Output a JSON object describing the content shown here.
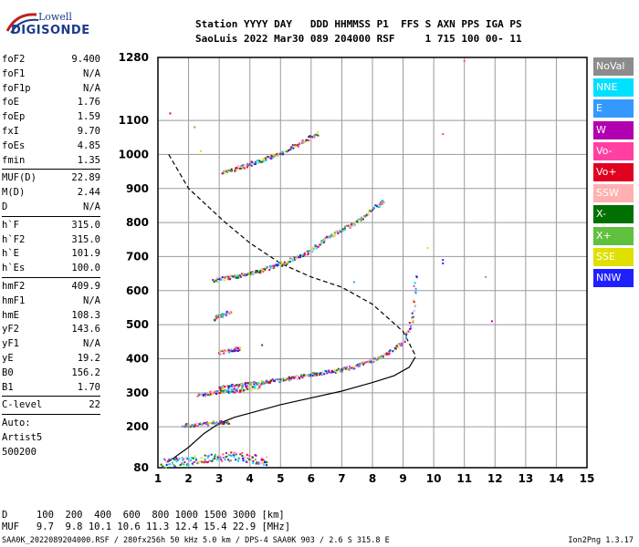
{
  "logo": {
    "top": "Lowell",
    "main": "DIGISONDE"
  },
  "header": {
    "line1": "Station YYYY DAY   DDD HHMMSS P1  FFS S AXN PPS IGA PS",
    "line2": "SaoLuis 2022 Mar30 089 204000 RSF     1 715 100 00- 11"
  },
  "params": {
    "group1": [
      {
        "name": "foF2",
        "value": "9.400"
      },
      {
        "name": "foF1",
        "value": "N/A"
      },
      {
        "name": "foF1p",
        "value": "N/A"
      },
      {
        "name": "foE",
        "value": "1.76"
      },
      {
        "name": "foEp",
        "value": "1.59"
      },
      {
        "name": "fxI",
        "value": "9.70"
      },
      {
        "name": "foEs",
        "value": "4.85"
      },
      {
        "name": "fmin",
        "value": "1.35"
      }
    ],
    "group2": [
      {
        "name": "MUF(D)",
        "value": "22.89"
      },
      {
        "name": "M(D)",
        "value": "2.44"
      },
      {
        "name": "D",
        "value": "N/A"
      }
    ],
    "group3": [
      {
        "name": "h`F",
        "value": "315.0"
      },
      {
        "name": "h`F2",
        "value": "315.0"
      },
      {
        "name": "h`E",
        "value": "101.9"
      },
      {
        "name": "h`Es",
        "value": "100.0"
      }
    ],
    "group4": [
      {
        "name": "hmF2",
        "value": "409.9"
      },
      {
        "name": "hmF1",
        "value": "N/A"
      },
      {
        "name": "hmE",
        "value": "108.3"
      },
      {
        "name": "yF2",
        "value": "143.6"
      },
      {
        "name": "yF1",
        "value": "N/A"
      },
      {
        "name": "yE",
        "value": "19.2"
      },
      {
        "name": "B0",
        "value": "156.2"
      },
      {
        "name": "B1",
        "value": "1.70"
      }
    ],
    "group5": [
      {
        "name": "C-level",
        "value": "22"
      }
    ],
    "auto": [
      "Auto:",
      "Artist5",
      "500200"
    ]
  },
  "legend": [
    {
      "label": "NoVal",
      "color": "#8c8c8c"
    },
    {
      "label": "NNE",
      "color": "#00e0ff"
    },
    {
      "label": "E",
      "color": "#3399ff"
    },
    {
      "label": "W",
      "color": "#b000b0"
    },
    {
      "label": "Vo-",
      "color": "#ff40a0"
    },
    {
      "label": "Vo+",
      "color": "#e00020"
    },
    {
      "label": "SSW",
      "color": "#ffb0b0"
    },
    {
      "label": "X-",
      "color": "#007000"
    },
    {
      "label": "X+",
      "color": "#60c040"
    },
    {
      "label": "SSE",
      "color": "#e0e000"
    },
    {
      "label": "NNW",
      "color": "#2020ff"
    }
  ],
  "footer": {
    "line1": "D     100  200  400  600  800 1000 1500 3000 [km]",
    "line2": "MUF   9.7  9.8 10.1 10.6 11.3 12.4 15.4 22.9 [MHz]",
    "file_info": "SAA0K_2022089204000.RSF / 280fx256h 50 kHz 5.0 km / DPS-4 SAA0K 903 / 2.6 S 315.8 E",
    "version": "Ion2Png 1.3.17"
  },
  "chart_data": {
    "type": "scatter",
    "x_ticks": [
      "1",
      "2",
      "3",
      "4",
      "5",
      "6",
      "7",
      "8",
      "9",
      "10",
      "11",
      "12",
      "13",
      "14",
      "15"
    ],
    "y_ticks": [
      "80",
      "200",
      "300",
      "400",
      "500",
      "600",
      "700",
      "800",
      "900",
      "1000",
      "1100",
      "1280"
    ],
    "xlim": [
      1,
      15
    ],
    "y_tick_values": [
      80,
      200,
      300,
      400,
      500,
      600,
      700,
      800,
      900,
      1000,
      1100,
      1280
    ],
    "y_tick_fracs": [
      0,
      0.0996,
      0.1826,
      0.2656,
      0.3486,
      0.4316,
      0.5146,
      0.5975,
      0.6805,
      0.7635,
      0.8465,
      1
    ],
    "grid": true,
    "traces": [
      {
        "name": "",
        "values": [
          [
            3.0,
            318
          ],
          [
            4.0,
            328
          ],
          [
            5.0,
            340
          ],
          [
            6.0,
            355
          ],
          [
            7.0,
            370
          ],
          [
            7.5,
            382
          ],
          [
            8.0,
            398
          ],
          [
            8.5,
            418
          ],
          [
            9.0,
            452
          ],
          [
            9.3,
            520
          ],
          [
            9.4,
            665
          ]
        ]
      },
      {
        "name": "",
        "values": [
          [
            3.0,
            420
          ],
          [
            3.4,
            428
          ],
          [
            3.7,
            432
          ]
        ]
      },
      {
        "name": "",
        "values": [
          [
            2.8,
            520
          ],
          [
            3.1,
            532
          ],
          [
            3.4,
            542
          ]
        ]
      },
      {
        "name": "",
        "values": [
          [
            2.8,
            632
          ],
          [
            4.0,
            652
          ],
          [
            5.0,
            680
          ],
          [
            5.8,
            710
          ],
          [
            6.6,
            762
          ],
          [
            7.2,
            790
          ],
          [
            7.6,
            810
          ],
          [
            8.0,
            842
          ],
          [
            8.4,
            868
          ]
        ]
      },
      {
        "name": "",
        "values": [
          [
            3.1,
            950
          ],
          [
            3.8,
            968
          ],
          [
            4.5,
            990
          ],
          [
            5.0,
            1005
          ],
          [
            5.6,
            1035
          ],
          [
            6.2,
            1065
          ]
        ]
      },
      {
        "name": "",
        "values": [
          [
            1.8,
            205
          ],
          [
            2.4,
            210
          ],
          [
            3.0,
            214
          ],
          [
            3.3,
            216
          ]
        ]
      },
      {
        "name": "",
        "values": [
          [
            1.1,
            95
          ],
          [
            2.2,
            105
          ],
          [
            3.4,
            115
          ],
          [
            4.0,
            110
          ],
          [
            4.6,
            100
          ]
        ]
      },
      {
        "name": "",
        "values": [
          [
            2.3,
            295
          ],
          [
            3.0,
            305
          ],
          [
            3.8,
            312
          ],
          [
            4.3,
            318
          ]
        ]
      }
    ],
    "profile_dashed": [
      [
        1.35,
        1000
      ],
      [
        2.0,
        900
      ],
      [
        2.6,
        850
      ],
      [
        3.2,
        800
      ],
      [
        4.0,
        740
      ],
      [
        5.0,
        680
      ],
      [
        6.0,
        640
      ],
      [
        7.0,
        610
      ],
      [
        8.0,
        560
      ],
      [
        9.0,
        480
      ],
      [
        9.4,
        410
      ]
    ],
    "profile_solid": [
      [
        1.35,
        98
      ],
      [
        2.0,
        140
      ],
      [
        2.5,
        180
      ],
      [
        3.0,
        210
      ],
      [
        3.5,
        228
      ],
      [
        4.0,
        240
      ],
      [
        5.0,
        265
      ],
      [
        6.0,
        285
      ],
      [
        7.0,
        305
      ],
      [
        8.0,
        330
      ],
      [
        8.7,
        350
      ],
      [
        9.2,
        375
      ],
      [
        9.4,
        405
      ]
    ],
    "scatter_points": [
      [
        1.4,
        1120
      ],
      [
        2.4,
        1010
      ],
      [
        2.2,
        1080
      ],
      [
        11.0,
        1270
      ],
      [
        10.3,
        1060
      ],
      [
        9.8,
        725
      ],
      [
        10.3,
        680
      ],
      [
        10.3,
        690
      ],
      [
        11.7,
        640
      ],
      [
        11.9,
        510
      ],
      [
        7.4,
        625
      ],
      [
        4.4,
        440
      ]
    ]
  }
}
